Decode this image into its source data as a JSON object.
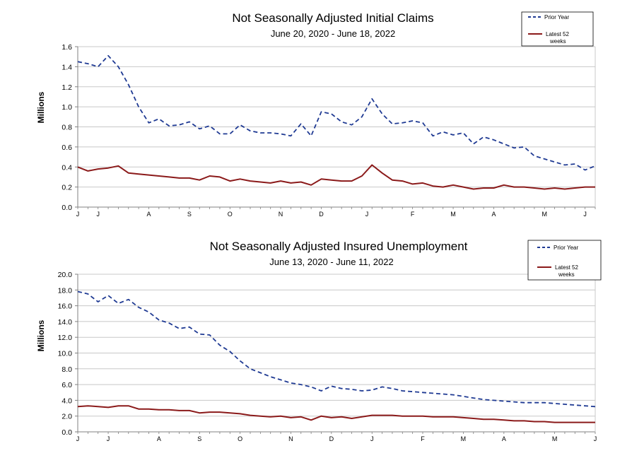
{
  "colors": {
    "prior_year": "#1f3a93",
    "latest": "#8b1a1a",
    "grid": "#c8c8c8",
    "axis": "#808080"
  },
  "chart_data": [
    {
      "type": "line",
      "title": "Not Seasonally Adjusted Initial Claims",
      "subtitle": "June 20, 2020  -  June 18, 2022",
      "ylabel": "Millions",
      "ylim": [
        0,
        1.6
      ],
      "yticks": [
        "0.0",
        "0.2",
        "0.4",
        "0.6",
        "0.8",
        "1.0",
        "1.2",
        "1.4",
        "1.6"
      ],
      "x": [
        1,
        2,
        3,
        4,
        5,
        6,
        7,
        8,
        9,
        10,
        11,
        12,
        13,
        14,
        15,
        16,
        17,
        18,
        19,
        20,
        21,
        22,
        23,
        24,
        25,
        26,
        27,
        28,
        29,
        30,
        31,
        32,
        33,
        34,
        35,
        36,
        37,
        38,
        39,
        40,
        41,
        42,
        43,
        44,
        45,
        46,
        47,
        48,
        49,
        50,
        51,
        52
      ],
      "xlim": [
        1,
        52
      ],
      "xtick_labels": [
        {
          "label": "J",
          "x": 1
        },
        {
          "label": "J",
          "x": 3
        },
        {
          "label": "A",
          "x": 8
        },
        {
          "label": "S",
          "x": 12
        },
        {
          "label": "O",
          "x": 16
        },
        {
          "label": "N",
          "x": 21
        },
        {
          "label": "D",
          "x": 25
        },
        {
          "label": "J",
          "x": 29.5
        },
        {
          "label": "F",
          "x": 34
        },
        {
          "label": "M",
          "x": 38
        },
        {
          "label": "A",
          "x": 42
        },
        {
          "label": "M",
          "x": 47
        },
        {
          "label": "J",
          "x": 51
        }
      ],
      "legend": {
        "prior_label": "Prior Year",
        "latest_label": "Latest 52 weeks",
        "latest_lines": [
          "Latest 52",
          "weeks"
        ],
        "placement": "top-right"
      },
      "series": [
        {
          "name": "Prior Year",
          "style": "dashed",
          "values": [
            1.45,
            1.43,
            1.4,
            1.51,
            1.4,
            1.22,
            1.0,
            0.84,
            0.88,
            0.81,
            0.82,
            0.85,
            0.78,
            0.81,
            0.73,
            0.73,
            0.82,
            0.76,
            0.74,
            0.74,
            0.73,
            0.71,
            0.83,
            0.71,
            0.95,
            0.93,
            0.85,
            0.82,
            0.9,
            1.08,
            0.93,
            0.83,
            0.84,
            0.86,
            0.84,
            0.71,
            0.75,
            0.72,
            0.74,
            0.63,
            0.7,
            0.67,
            0.63,
            0.59,
            0.6,
            0.51,
            0.48,
            0.45,
            0.42,
            0.43,
            0.37,
            0.41
          ]
        },
        {
          "name": "Latest 52 weeks",
          "style": "solid",
          "values": [
            0.4,
            0.36,
            0.38,
            0.39,
            0.41,
            0.34,
            0.33,
            0.32,
            0.31,
            0.3,
            0.29,
            0.29,
            0.27,
            0.31,
            0.3,
            0.26,
            0.28,
            0.26,
            0.25,
            0.24,
            0.26,
            0.24,
            0.25,
            0.22,
            0.28,
            0.27,
            0.26,
            0.26,
            0.31,
            0.42,
            0.34,
            0.27,
            0.26,
            0.23,
            0.24,
            0.21,
            0.2,
            0.22,
            0.2,
            0.18,
            0.19,
            0.19,
            0.22,
            0.2,
            0.2,
            0.19,
            0.18,
            0.19,
            0.18,
            0.19,
            0.2,
            0.2
          ]
        }
      ]
    },
    {
      "type": "line",
      "title": "Not Seasonally Adjusted Insured Unemployment",
      "subtitle": "June 13, 2020 - June 11, 2022",
      "ylabel": "Millions",
      "ylim": [
        0,
        20
      ],
      "yticks": [
        "0.0",
        "2.0",
        "4.0",
        "6.0",
        "8.0",
        "10.0",
        "12.0",
        "14.0",
        "16.0",
        "18.0",
        "20.0"
      ],
      "x": [
        1,
        2,
        3,
        4,
        5,
        6,
        7,
        8,
        9,
        10,
        11,
        12,
        13,
        14,
        15,
        16,
        17,
        18,
        19,
        20,
        21,
        22,
        23,
        24,
        25,
        26,
        27,
        28,
        29,
        30,
        31,
        32,
        33,
        34,
        35,
        36,
        37,
        38,
        39,
        40,
        41,
        42,
        43,
        44,
        45,
        46,
        47,
        48,
        49,
        50,
        51,
        52
      ],
      "xlim": [
        1,
        52
      ],
      "xtick_labels": [
        {
          "label": "J",
          "x": 1
        },
        {
          "label": "J",
          "x": 4
        },
        {
          "label": "A",
          "x": 9
        },
        {
          "label": "S",
          "x": 13
        },
        {
          "label": "O",
          "x": 17
        },
        {
          "label": "N",
          "x": 22
        },
        {
          "label": "D",
          "x": 26
        },
        {
          "label": "J",
          "x": 30
        },
        {
          "label": "F",
          "x": 35
        },
        {
          "label": "M",
          "x": 39
        },
        {
          "label": "A",
          "x": 43
        },
        {
          "label": "M",
          "x": 48
        },
        {
          "label": "J",
          "x": 52
        }
      ],
      "legend": {
        "prior_label": "Prior Year",
        "latest_label": "Latest 52 weeks",
        "latest_lines": [
          "Latest 52",
          "weeks"
        ],
        "placement": "top-right"
      },
      "series": [
        {
          "name": "Prior Year",
          "style": "dashed",
          "values": [
            17.8,
            17.5,
            16.5,
            17.3,
            16.3,
            16.8,
            15.8,
            15.2,
            14.2,
            13.8,
            13.1,
            13.3,
            12.4,
            12.3,
            11.0,
            10.2,
            9.0,
            8.0,
            7.5,
            7.0,
            6.6,
            6.2,
            6.0,
            5.7,
            5.2,
            5.8,
            5.5,
            5.4,
            5.2,
            5.3,
            5.7,
            5.5,
            5.2,
            5.1,
            5.0,
            4.9,
            4.8,
            4.7,
            4.5,
            4.3,
            4.1,
            4.0,
            3.9,
            3.8,
            3.7,
            3.7,
            3.7,
            3.6,
            3.5,
            3.4,
            3.3,
            3.2
          ]
        },
        {
          "name": "Latest 52 weeks",
          "style": "solid",
          "values": [
            3.2,
            3.3,
            3.2,
            3.1,
            3.3,
            3.3,
            2.9,
            2.9,
            2.8,
            2.8,
            2.7,
            2.7,
            2.4,
            2.5,
            2.5,
            2.4,
            2.3,
            2.1,
            2.0,
            1.9,
            2.0,
            1.8,
            1.9,
            1.5,
            2.0,
            1.8,
            1.9,
            1.7,
            1.9,
            2.1,
            2.1,
            2.1,
            2.0,
            2.0,
            2.0,
            1.9,
            1.9,
            1.9,
            1.8,
            1.7,
            1.6,
            1.6,
            1.5,
            1.4,
            1.4,
            1.3,
            1.3,
            1.2,
            1.2,
            1.2,
            1.2,
            1.2
          ]
        }
      ]
    }
  ]
}
